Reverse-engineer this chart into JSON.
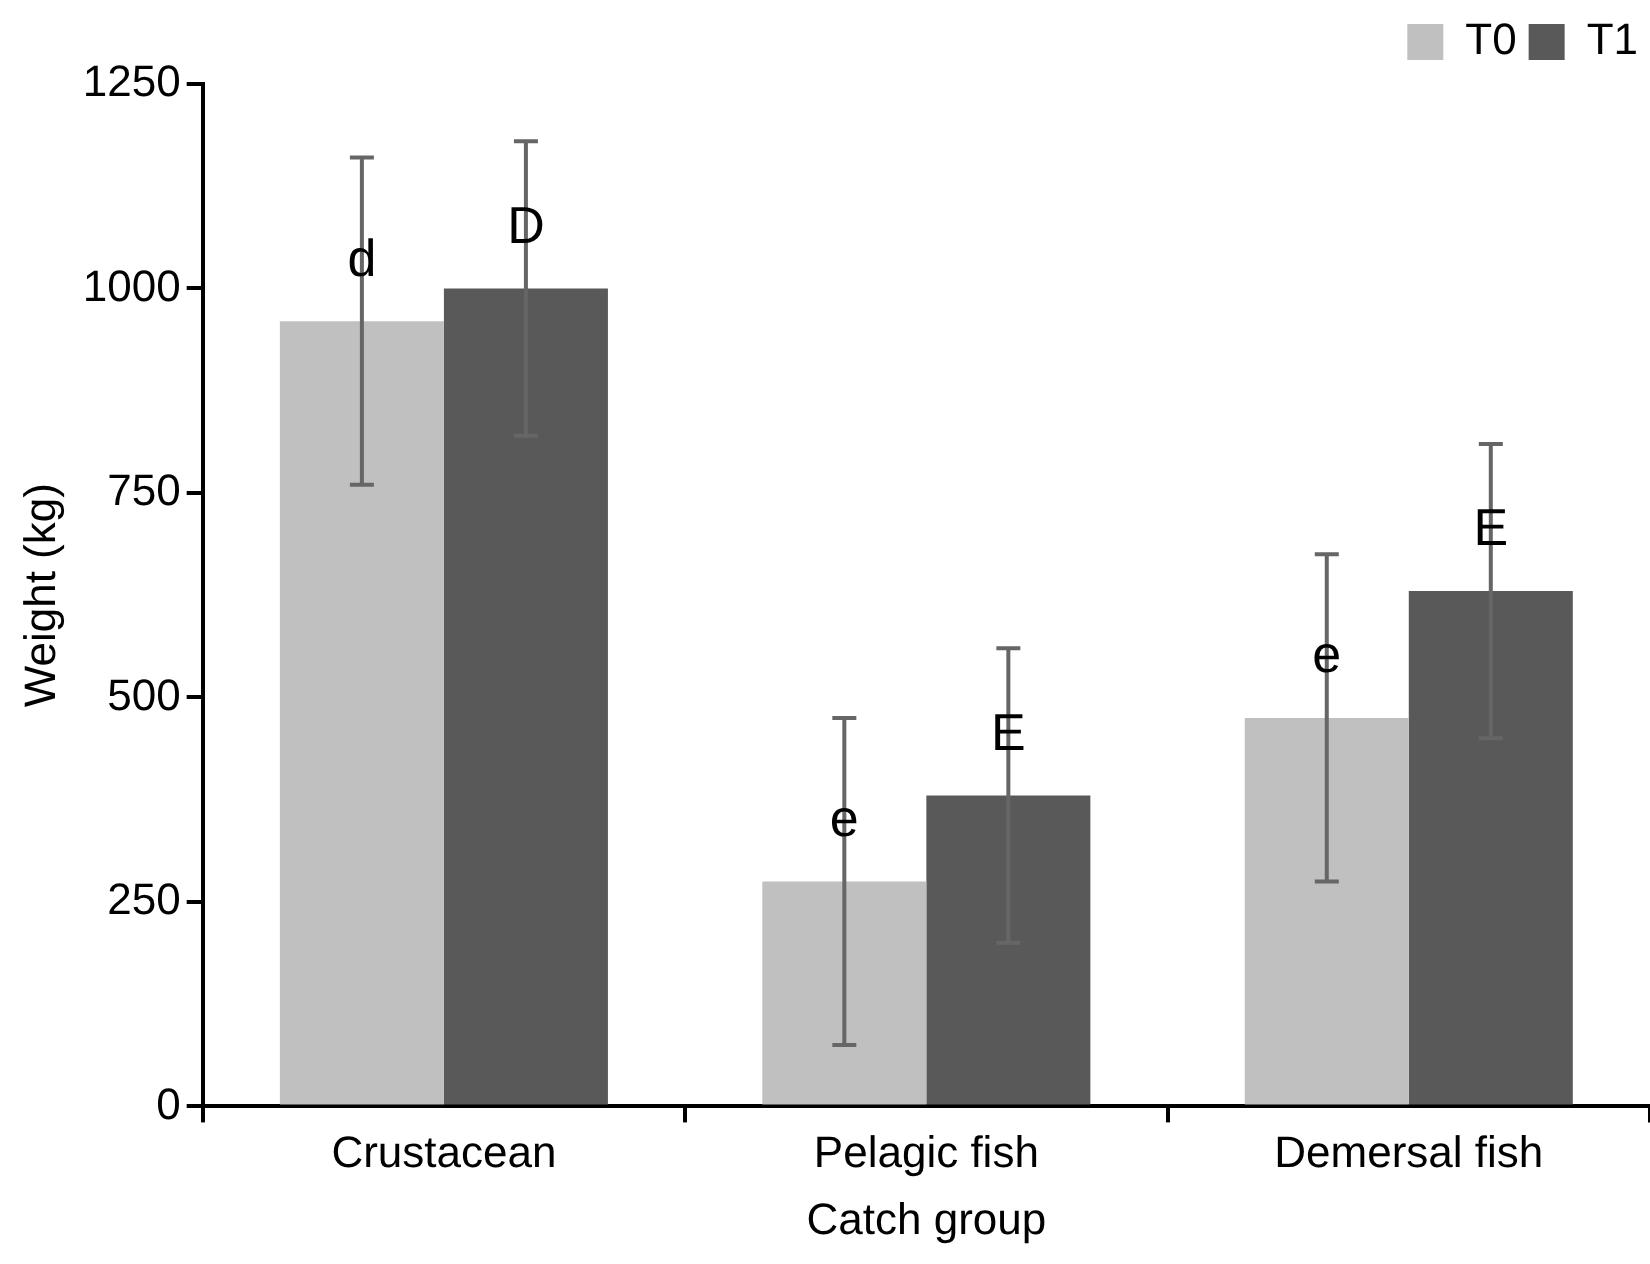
{
  "chart_data": {
    "type": "bar",
    "xlabel": "Catch group",
    "ylabel": "Weight (kg)",
    "categories": [
      "Crustacean",
      "Pelagic fish",
      "Demersal fish"
    ],
    "series": [
      {
        "name": "T0",
        "color": "#c0c0c0",
        "values": [
          960,
          275,
          475
        ],
        "errors": [
          200,
          200,
          200
        ]
      },
      {
        "name": "T1",
        "color": "#595959",
        "values": [
          1000,
          380,
          630
        ],
        "errors": [
          180,
          180,
          180
        ]
      }
    ],
    "ylim": [
      0,
      1250
    ],
    "yticks": [
      0,
      250,
      500,
      750,
      1000,
      1250
    ],
    "grid": false,
    "legend": "top right",
    "annotations": [
      {
        "text": "d",
        "x": "Crustacean",
        "y": 960
      },
      {
        "text": "D",
        "x": "Crustacean",
        "y": 1000
      },
      {
        "text": "e",
        "x": "Pelagic fish",
        "y": 275
      },
      {
        "text": "E",
        "x": "Pelagic fish",
        "y": 380
      },
      {
        "text": "e",
        "x": "Demersal fish",
        "y": 475
      },
      {
        "text": "E",
        "x": "Demersal fish",
        "y": 630
      }
    ]
  }
}
